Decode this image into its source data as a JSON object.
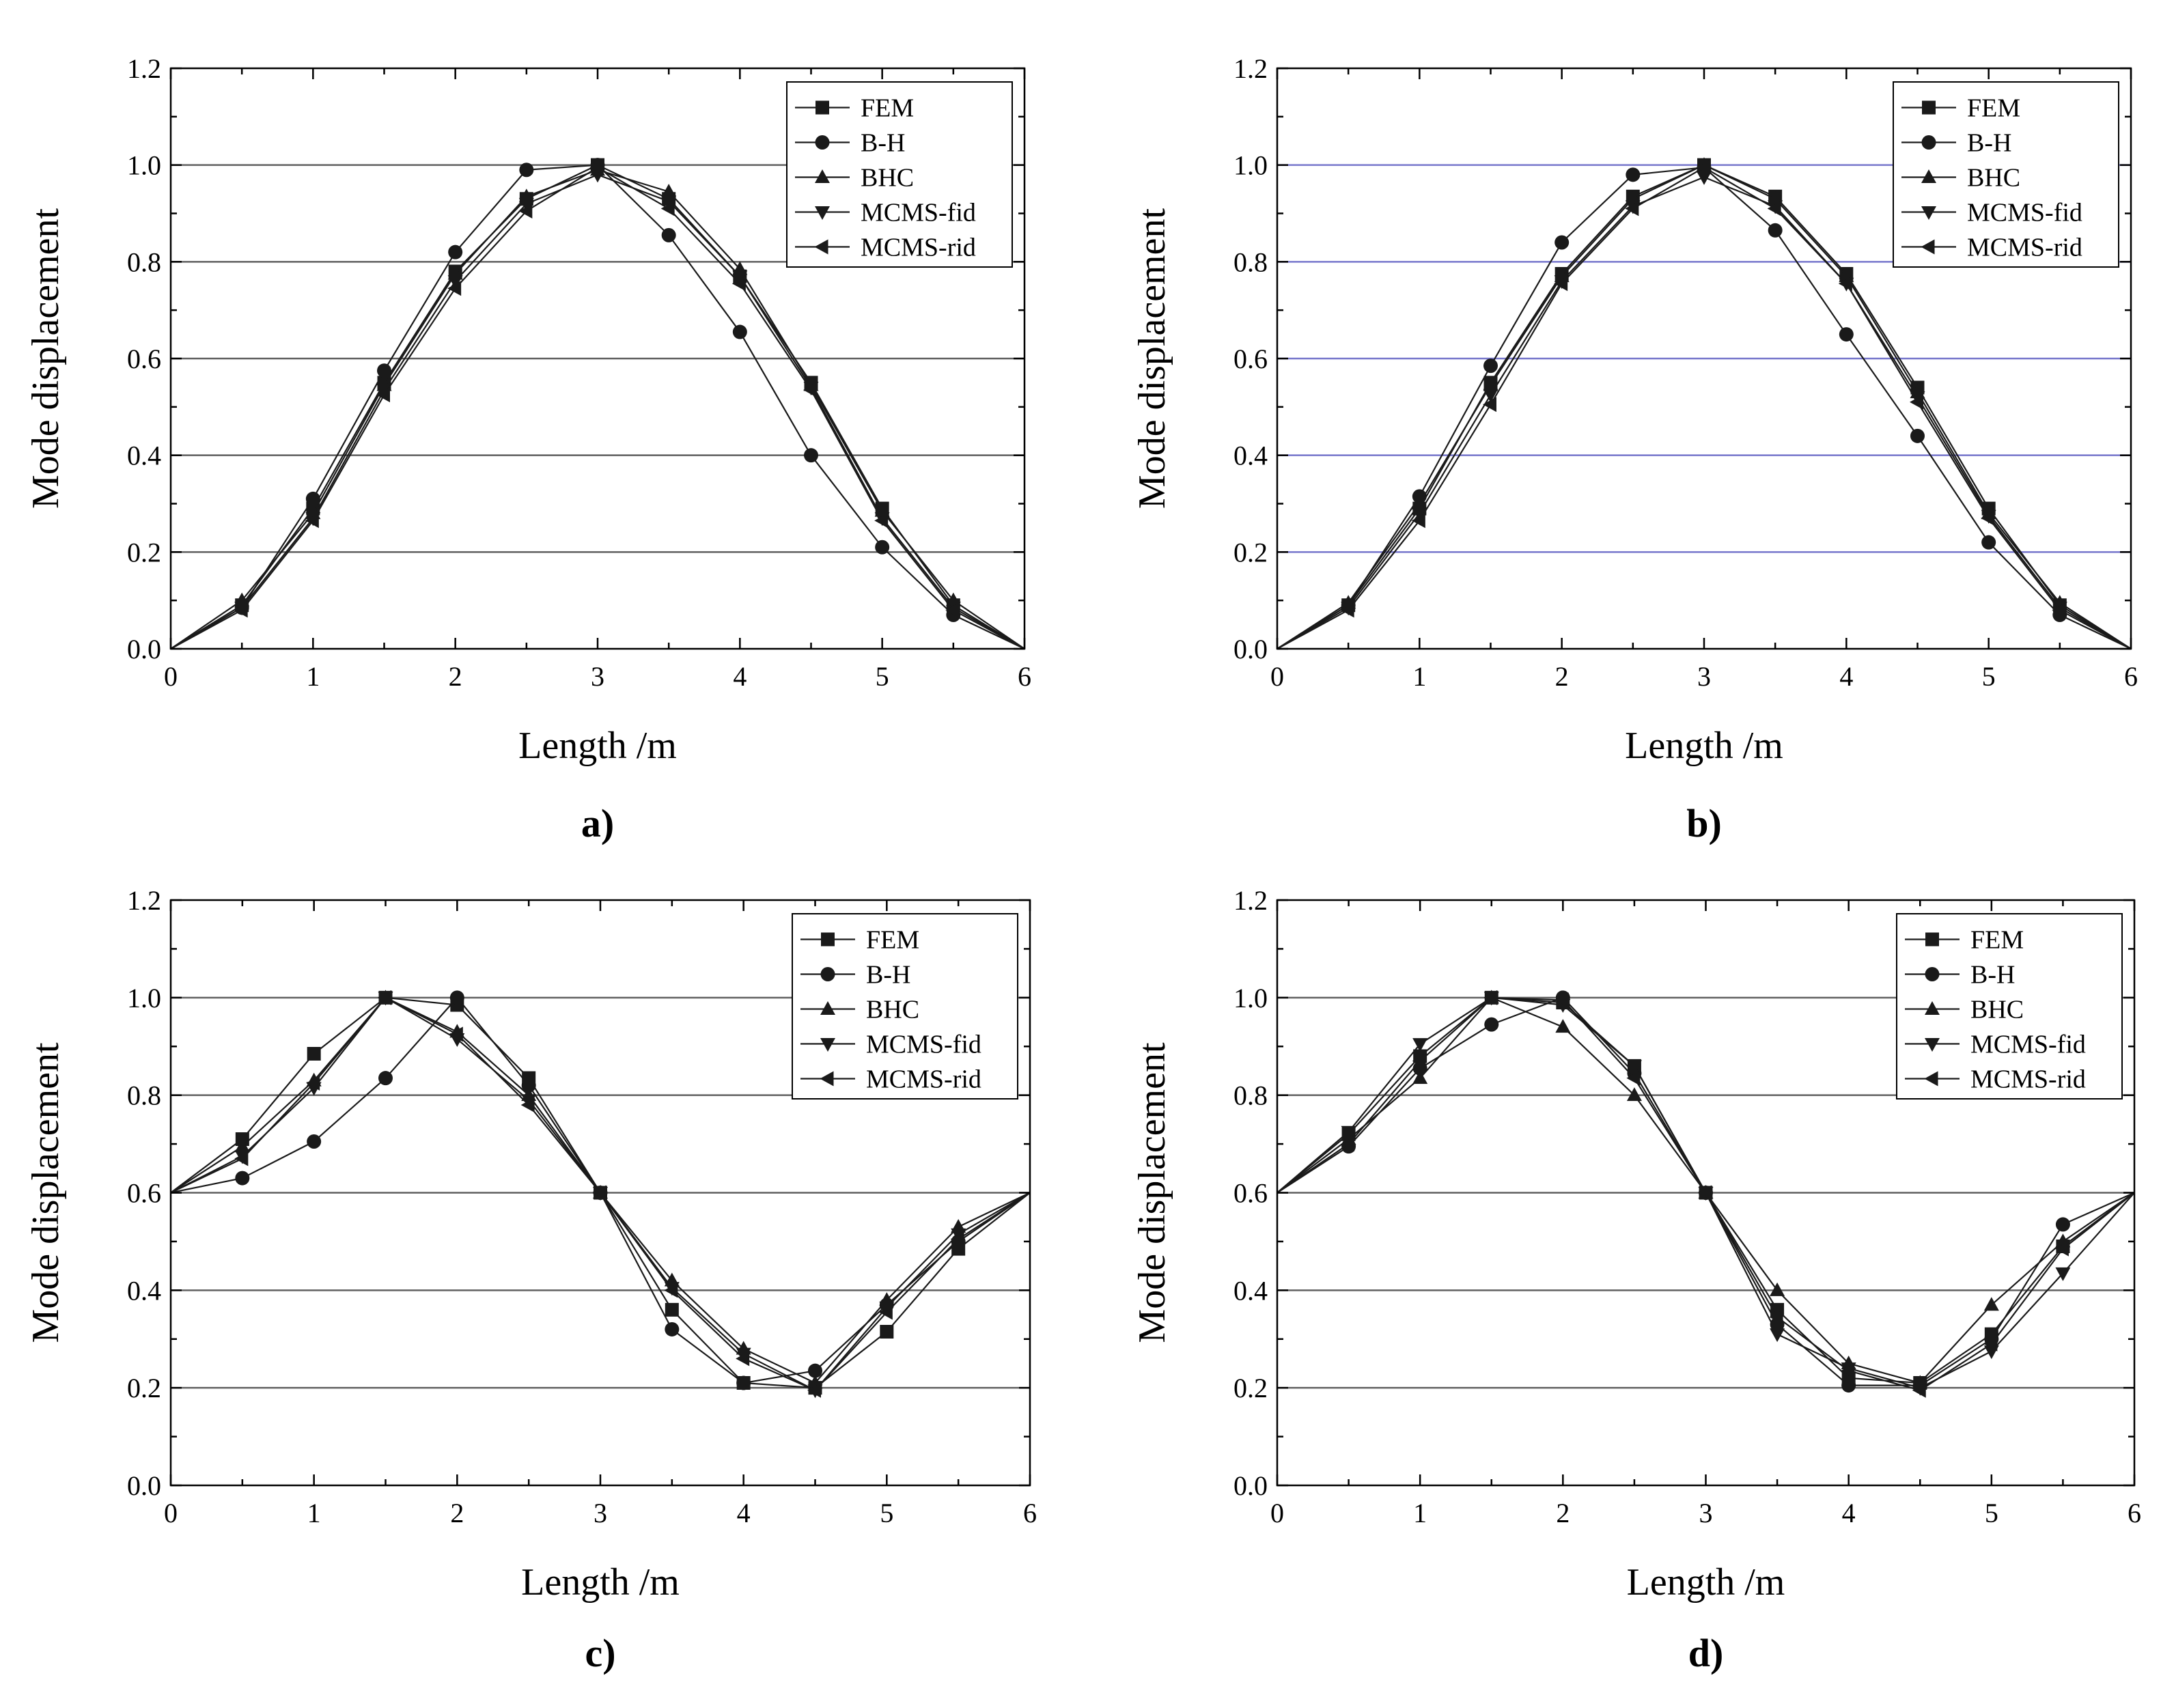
{
  "figure_name": "mode-shape-comparison",
  "colors": {
    "series": "#1a1a1a",
    "grid_a": "#606060",
    "grid_b": "#7777cc",
    "axis": "#000000"
  },
  "chart_data": [
    {
      "panel": "a)",
      "type": "line",
      "xlabel": "Length /m",
      "ylabel": "Mode displacement",
      "xlim": [
        0,
        6
      ],
      "ylim": [
        0,
        1.2
      ],
      "xticks": [
        0,
        1,
        2,
        3,
        4,
        5,
        6
      ],
      "yticks": [
        0.0,
        0.2,
        0.4,
        0.6,
        0.8,
        1.0,
        1.2
      ],
      "ytick_labels": [
        "0.0",
        "0.2",
        "0.4",
        "0.6",
        "0.8",
        "1.0",
        "1.2"
      ],
      "grid": "horizontal",
      "grid_color": "#606060",
      "legend_position": "top-right",
      "x": [
        0,
        0.5,
        1,
        1.5,
        2,
        2.5,
        3,
        3.5,
        4,
        4.5,
        5,
        5.5,
        6
      ],
      "series": [
        {
          "name": "FEM",
          "marker": "square",
          "values": [
            0,
            0.09,
            0.29,
            0.55,
            0.78,
            0.93,
            1.0,
            0.93,
            0.77,
            0.55,
            0.29,
            0.09,
            0
          ]
        },
        {
          "name": "B-H",
          "marker": "circle",
          "values": [
            0,
            0.085,
            0.31,
            0.575,
            0.82,
            0.99,
            1.0,
            0.855,
            0.655,
            0.4,
            0.21,
            0.07,
            0
          ]
        },
        {
          "name": "BHC",
          "marker": "triangle-up",
          "values": [
            0,
            0.1,
            0.28,
            0.545,
            0.775,
            0.935,
            0.99,
            0.945,
            0.785,
            0.545,
            0.285,
            0.1,
            0
          ]
        },
        {
          "name": "MCMS-fid",
          "marker": "triangle-down",
          "values": [
            0,
            0.085,
            0.27,
            0.535,
            0.76,
            0.92,
            0.98,
            0.925,
            0.77,
            0.54,
            0.27,
            0.085,
            0
          ]
        },
        {
          "name": "MCMS-rid",
          "marker": "triangle-left",
          "values": [
            0,
            0.08,
            0.265,
            0.525,
            0.745,
            0.905,
            0.995,
            0.91,
            0.755,
            0.535,
            0.265,
            0.08,
            0
          ]
        }
      ]
    },
    {
      "panel": "b)",
      "type": "line",
      "xlabel": "Length /m",
      "ylabel": "Mode displacement",
      "xlim": [
        0,
        6
      ],
      "ylim": [
        0,
        1.2
      ],
      "xticks": [
        0,
        1,
        2,
        3,
        4,
        5,
        6
      ],
      "yticks": [
        0.0,
        0.2,
        0.4,
        0.6,
        0.8,
        1.0,
        1.2
      ],
      "ytick_labels": [
        "0.0",
        "0.2",
        "0.4",
        "0.6",
        "0.8",
        "1.0",
        "1.2"
      ],
      "grid": "horizontal",
      "grid_color": "#7777cc",
      "legend_position": "top-right",
      "x": [
        0,
        0.5,
        1,
        1.5,
        2,
        2.5,
        3,
        3.5,
        4,
        4.5,
        5,
        5.5,
        6
      ],
      "series": [
        {
          "name": "FEM",
          "marker": "square",
          "values": [
            0,
            0.09,
            0.29,
            0.55,
            0.775,
            0.935,
            1.0,
            0.935,
            0.775,
            0.54,
            0.29,
            0.09,
            0
          ]
        },
        {
          "name": "B-H",
          "marker": "circle",
          "values": [
            0,
            0.09,
            0.315,
            0.585,
            0.84,
            0.98,
            0.995,
            0.865,
            0.65,
            0.44,
            0.22,
            0.07,
            0
          ]
        },
        {
          "name": "BHC",
          "marker": "triangle-up",
          "values": [
            0,
            0.095,
            0.3,
            0.545,
            0.77,
            0.93,
            1.0,
            0.93,
            0.77,
            0.53,
            0.28,
            0.095,
            0
          ]
        },
        {
          "name": "MCMS-fid",
          "marker": "triangle-down",
          "values": [
            0,
            0.085,
            0.28,
            0.525,
            0.76,
            0.915,
            0.975,
            0.915,
            0.755,
            0.52,
            0.275,
            0.085,
            0
          ]
        },
        {
          "name": "MCMS-rid",
          "marker": "triangle-left",
          "values": [
            0,
            0.08,
            0.265,
            0.505,
            0.755,
            0.91,
            0.995,
            0.91,
            0.755,
            0.51,
            0.27,
            0.08,
            0
          ]
        }
      ]
    },
    {
      "panel": "c)",
      "type": "line",
      "xlabel": "Length /m",
      "ylabel": "Mode displacement",
      "xlim": [
        0,
        6
      ],
      "ylim": [
        0,
        1.2
      ],
      "xticks": [
        0,
        1,
        2,
        3,
        4,
        5,
        6
      ],
      "yticks": [
        0.0,
        0.2,
        0.4,
        0.6,
        0.8,
        1.0,
        1.2
      ],
      "ytick_labels": [
        "0.0",
        "0.2",
        "0.4",
        "0.6",
        "0.8",
        "1.0",
        "1.2"
      ],
      "grid": "horizontal",
      "grid_color": "#606060",
      "legend_position": "top-right",
      "x": [
        0,
        0.5,
        1,
        1.5,
        2,
        2.5,
        3,
        3.5,
        4,
        4.5,
        5,
        5.5,
        6
      ],
      "series": [
        {
          "name": "FEM",
          "marker": "square",
          "values": [
            0.6,
            0.71,
            0.885,
            1.0,
            0.985,
            0.835,
            0.6,
            0.36,
            0.21,
            0.2,
            0.315,
            0.485,
            0.6
          ]
        },
        {
          "name": "B-H",
          "marker": "circle",
          "values": [
            0.6,
            0.63,
            0.705,
            0.835,
            1.0,
            0.82,
            0.6,
            0.32,
            0.21,
            0.235,
            0.37,
            0.5,
            0.6
          ]
        },
        {
          "name": "BHC",
          "marker": "triangle-up",
          "values": [
            0.6,
            0.695,
            0.83,
            1.0,
            0.93,
            0.8,
            0.6,
            0.42,
            0.28,
            0.21,
            0.38,
            0.53,
            0.6
          ]
        },
        {
          "name": "MCMS-fid",
          "marker": "triangle-down",
          "values": [
            0.6,
            0.675,
            0.815,
            1.0,
            0.915,
            0.79,
            0.6,
            0.405,
            0.27,
            0.195,
            0.365,
            0.515,
            0.6
          ]
        },
        {
          "name": "MCMS-rid",
          "marker": "triangle-left",
          "values": [
            0.6,
            0.67,
            0.825,
            1.0,
            0.925,
            0.78,
            0.6,
            0.4,
            0.26,
            0.195,
            0.355,
            0.505,
            0.6
          ]
        }
      ]
    },
    {
      "panel": "d)",
      "type": "line",
      "xlabel": "Length /m",
      "ylabel": "Mode displacement",
      "xlim": [
        0,
        6
      ],
      "ylim": [
        0,
        1.2
      ],
      "xticks": [
        0,
        1,
        2,
        3,
        4,
        5,
        6
      ],
      "yticks": [
        0.0,
        0.2,
        0.4,
        0.6,
        0.8,
        1.0,
        1.2
      ],
      "ytick_labels": [
        "0.0",
        "0.2",
        "0.4",
        "0.6",
        "0.8",
        "1.0",
        "1.2"
      ],
      "grid": "horizontal",
      "grid_color": "#606060",
      "legend_position": "top-right",
      "x": [
        0,
        0.5,
        1,
        1.5,
        2,
        2.5,
        3,
        3.5,
        4,
        4.5,
        5,
        5.5,
        6
      ],
      "series": [
        {
          "name": "FEM",
          "marker": "square",
          "values": [
            0.6,
            0.72,
            0.88,
            1.0,
            0.99,
            0.86,
            0.6,
            0.36,
            0.22,
            0.21,
            0.31,
            0.49,
            0.6
          ]
        },
        {
          "name": "B-H",
          "marker": "circle",
          "values": [
            0.6,
            0.695,
            0.855,
            0.945,
            1.0,
            0.845,
            0.6,
            0.33,
            0.205,
            0.205,
            0.3,
            0.535,
            0.6
          ]
        },
        {
          "name": "BHC",
          "marker": "triangle-up",
          "values": [
            0.6,
            0.71,
            0.835,
            1.0,
            0.94,
            0.8,
            0.6,
            0.4,
            0.25,
            0.21,
            0.37,
            0.5,
            0.6
          ]
        },
        {
          "name": "MCMS-fid",
          "marker": "triangle-down",
          "values": [
            0.6,
            0.725,
            0.905,
            1.0,
            0.985,
            0.86,
            0.6,
            0.31,
            0.24,
            0.2,
            0.275,
            0.435,
            0.6
          ]
        },
        {
          "name": "MCMS-rid",
          "marker": "triangle-left",
          "values": [
            0.6,
            0.7,
            0.87,
            1.0,
            0.995,
            0.835,
            0.6,
            0.345,
            0.235,
            0.195,
            0.29,
            0.485,
            0.6
          ]
        }
      ]
    }
  ]
}
